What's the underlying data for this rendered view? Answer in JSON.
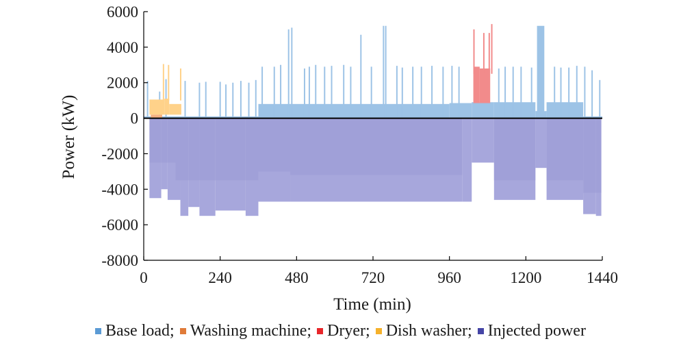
{
  "chart_data": {
    "type": "bar",
    "title": "",
    "xlabel": "Time (min)",
    "ylabel": "Power (kW)",
    "xlim": [
      0,
      1440
    ],
    "ylim": [
      -8000,
      6000
    ],
    "xticks": [
      0,
      240,
      480,
      720,
      960,
      1200,
      1440
    ],
    "xtick_labels": [
      "0",
      "240",
      "480",
      "720",
      "960",
      "1200",
      "1440"
    ],
    "yticks": [
      6000,
      4000,
      2000,
      0,
      -2000,
      -4000,
      -6000,
      -8000
    ],
    "ytick_labels": [
      "6000",
      "4000",
      "2000",
      "0",
      "-2000",
      "-4000",
      "-6000",
      "-8000"
    ],
    "grid": false,
    "legend_position": "bottom",
    "legend_separator": ";",
    "series": [
      {
        "name": "Base load",
        "color": "#9dc3e6",
        "legend_color": "#5b9bd5",
        "baseline_segments": [
          {
            "x": [
              0,
              360
            ],
            "value": 100
          },
          {
            "x": [
              360,
              960
            ],
            "value": 800
          },
          {
            "x": [
              960,
              1030
            ],
            "value": 850
          },
          {
            "x": [
              1030,
              1100
            ],
            "value": 900
          },
          {
            "x": [
              1100,
              1230
            ],
            "value": 900
          },
          {
            "x": [
              1230,
              1265
            ],
            "value": 400
          },
          {
            "x": [
              1265,
              1380
            ],
            "value": 900
          },
          {
            "x": [
              1380,
              1440
            ],
            "value": 100
          }
        ],
        "spikes": [
          {
            "t": 12,
            "v": 2100
          },
          {
            "t": 50,
            "v": 1500
          },
          {
            "t": 70,
            "v": 2200
          },
          {
            "t": 130,
            "v": 2100
          },
          {
            "t": 175,
            "v": 2000
          },
          {
            "t": 195,
            "v": 2050
          },
          {
            "t": 240,
            "v": 2050
          },
          {
            "t": 258,
            "v": 1900
          },
          {
            "t": 280,
            "v": 2000
          },
          {
            "t": 305,
            "v": 2100
          },
          {
            "t": 330,
            "v": 2000
          },
          {
            "t": 352,
            "v": 2150
          },
          {
            "t": 372,
            "v": 2900
          },
          {
            "t": 410,
            "v": 2900
          },
          {
            "t": 430,
            "v": 3000
          },
          {
            "t": 455,
            "v": 5000
          },
          {
            "t": 465,
            "v": 5100
          },
          {
            "t": 505,
            "v": 2800
          },
          {
            "t": 520,
            "v": 2900
          },
          {
            "t": 540,
            "v": 3000
          },
          {
            "t": 568,
            "v": 2900
          },
          {
            "t": 590,
            "v": 2950
          },
          {
            "t": 628,
            "v": 3000
          },
          {
            "t": 650,
            "v": 2900
          },
          {
            "t": 682,
            "v": 4700
          },
          {
            "t": 715,
            "v": 2900
          },
          {
            "t": 753,
            "v": 5200
          },
          {
            "t": 760,
            "v": 5200
          },
          {
            "t": 795,
            "v": 2950
          },
          {
            "t": 812,
            "v": 2850
          },
          {
            "t": 845,
            "v": 2900
          },
          {
            "t": 872,
            "v": 2900
          },
          {
            "t": 905,
            "v": 2950
          },
          {
            "t": 940,
            "v": 2900
          },
          {
            "t": 968,
            "v": 2950
          },
          {
            "t": 990,
            "v": 2900
          },
          {
            "t": 1115,
            "v": 2800
          },
          {
            "t": 1135,
            "v": 2900
          },
          {
            "t": 1160,
            "v": 2900
          },
          {
            "t": 1185,
            "v": 2900
          },
          {
            "t": 1218,
            "v": 2850
          },
          {
            "t": 1290,
            "v": 2900
          },
          {
            "t": 1310,
            "v": 2850
          },
          {
            "t": 1335,
            "v": 2850
          },
          {
            "t": 1360,
            "v": 2950
          },
          {
            "t": 1385,
            "v": 2900
          },
          {
            "t": 1408,
            "v": 2700
          },
          {
            "t": 1432,
            "v": 2150
          }
        ],
        "plateaus": [
          {
            "x": [
              1235,
              1258
            ],
            "value": 5200
          }
        ]
      },
      {
        "name": "Washing machine",
        "color": "#f4b183",
        "legend_color": "#e07b39",
        "blocks": [
          {
            "x": [
              22,
              58
            ],
            "value": 200
          }
        ]
      },
      {
        "name": "Dryer",
        "color": "#f28b8b",
        "legend_color": "#e8262a",
        "blocks": [
          {
            "x": [
              1035,
              1055
            ],
            "value": 2900
          },
          {
            "x": [
              1055,
              1088
            ],
            "value": 2800
          }
        ],
        "spikes": [
          {
            "t": 1037,
            "v": 5000
          },
          {
            "t": 1068,
            "v": 4800
          },
          {
            "t": 1085,
            "v": 4800
          },
          {
            "t": 1093,
            "v": 5300
          }
        ]
      },
      {
        "name": "Dish washer",
        "color": "#ffd28a",
        "legend_color": "#f5b12b",
        "blocks": [
          {
            "x": [
              18,
              65
            ],
            "value": 1050
          },
          {
            "x": [
              65,
              80
            ],
            "value": 1100
          },
          {
            "x": [
              80,
              118
            ],
            "value": 800
          }
        ],
        "spikes": [
          {
            "t": 62,
            "v": 3050
          },
          {
            "t": 78,
            "v": 3000
          },
          {
            "t": 116,
            "v": 2800
          }
        ]
      },
      {
        "name": "Injected power",
        "color": "#a7a7dc",
        "legend_color": "#4545a6",
        "segments": [
          {
            "x": [
              18,
              55
            ],
            "value": -4500
          },
          {
            "x": [
              55,
              75
            ],
            "value": -4000
          },
          {
            "x": [
              75,
              115
            ],
            "value": -4600
          },
          {
            "x": [
              115,
              140
            ],
            "value": -5500
          },
          {
            "x": [
              140,
              175
            ],
            "value": -5000
          },
          {
            "x": [
              175,
              225
            ],
            "value": -5500
          },
          {
            "x": [
              225,
              320
            ],
            "value": -5200
          },
          {
            "x": [
              320,
              360
            ],
            "value": -5500
          },
          {
            "x": [
              360,
              460
            ],
            "value": -4700
          },
          {
            "x": [
              460,
              1000
            ],
            "value": -4700
          },
          {
            "x": [
              1000,
              1030
            ],
            "value": -4700
          },
          {
            "x": [
              1030,
              1100
            ],
            "value": -2500
          },
          {
            "x": [
              1100,
              1230
            ],
            "value": -4600
          },
          {
            "x": [
              1230,
              1265
            ],
            "value": -2800
          },
          {
            "x": [
              1265,
              1380
            ],
            "value": -4600
          },
          {
            "x": [
              1380,
              1420
            ],
            "value": -5400
          },
          {
            "x": [
              1420,
              1437
            ],
            "value": -5500
          }
        ],
        "upper_bands": [
          {
            "x": [
              18,
              100
            ],
            "value": -2500
          },
          {
            "x": [
              100,
              360
            ],
            "value": -3500
          },
          {
            "x": [
              360,
              460
            ],
            "value": -3000
          },
          {
            "x": [
              460,
              1000
            ],
            "value": -3200
          },
          {
            "x": [
              1100,
              1230
            ],
            "value": -3500
          },
          {
            "x": [
              1265,
              1380
            ],
            "value": -3500
          },
          {
            "x": [
              1380,
              1437
            ],
            "value": -4200
          }
        ]
      }
    ]
  }
}
